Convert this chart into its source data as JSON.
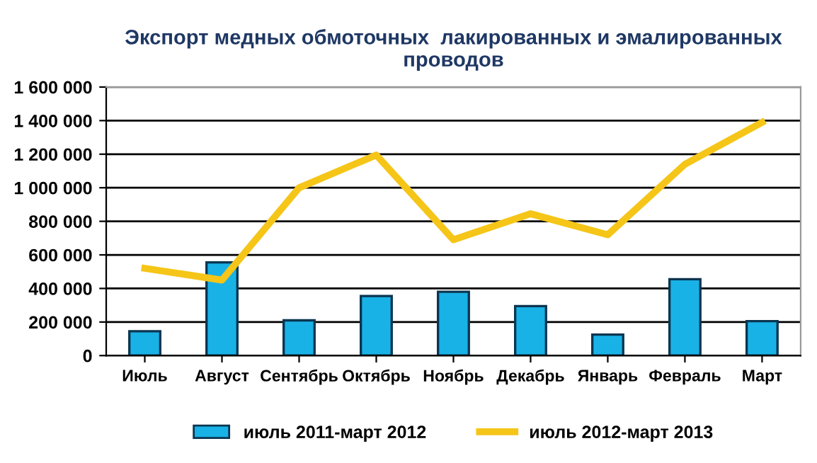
{
  "chart_data": {
    "type": "bar",
    "title": "Экспорт медных обмоточных  лакированных и эмалированных проводов",
    "categories": [
      "Июль",
      "Август",
      "Сентябрь",
      "Октябрь",
      "Ноябрь",
      "Декабрь",
      "Январь",
      "Февраль",
      "Март"
    ],
    "series": [
      {
        "name": "июль 2011-март 2012",
        "color": "#19b2e6",
        "values": [
          145000,
          555000,
          210000,
          355000,
          380000,
          295000,
          125000,
          455000,
          205000
        ]
      },
      {
        "name": "июль 2012-март 2013",
        "type": "line",
        "color": "#f5c518",
        "values": [
          520000,
          450000,
          1000000,
          1195000,
          690000,
          845000,
          720000,
          1140000,
          1390000
        ]
      }
    ],
    "ylim": [
      0,
      1600000
    ],
    "yticks": [
      {
        "value": 0,
        "label": "0"
      },
      {
        "value": 200000,
        "label": "200 000"
      },
      {
        "value": 400000,
        "label": "400 000"
      },
      {
        "value": 600000,
        "label": "600 000"
      },
      {
        "value": 800000,
        "label": "800 000"
      },
      {
        "value": 1000000,
        "label": "1 000 000"
      },
      {
        "value": 1200000,
        "label": "1 200 000"
      },
      {
        "value": 1400000,
        "label": "1 400 000"
      },
      {
        "value": 1600000,
        "label": "1 600 000"
      }
    ],
    "grid": "y",
    "legend": "bottom",
    "marker": "none",
    "line_style": "solid"
  }
}
